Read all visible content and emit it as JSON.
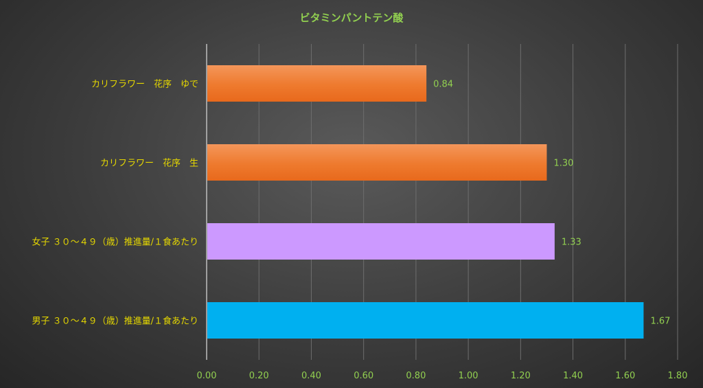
{
  "chart_data": {
    "type": "bar",
    "orientation": "horizontal",
    "title": "ビタミンパントテン酸",
    "categories": [
      "カリフラワー　花序　ゆで",
      "カリフラワー　花序　生",
      "女子 ３０～４９（歳）推進量/１食あたり",
      "男子 ３０～４９（歳）推進量/１食あたり"
    ],
    "values": [
      0.84,
      1.3,
      1.33,
      1.67
    ],
    "value_labels": [
      "0.84",
      "1.30",
      "1.33",
      "1.67"
    ],
    "bar_colors": [
      "#ee7020",
      "#ee7020",
      "#cc99ff",
      "#00b0f0"
    ],
    "xlim": [
      0,
      1.8
    ],
    "x_ticks": [
      "0.00",
      "0.20",
      "0.40",
      "0.60",
      "0.80",
      "1.00",
      "1.20",
      "1.40",
      "1.60",
      "1.80"
    ],
    "grid": true,
    "legend": "none"
  }
}
